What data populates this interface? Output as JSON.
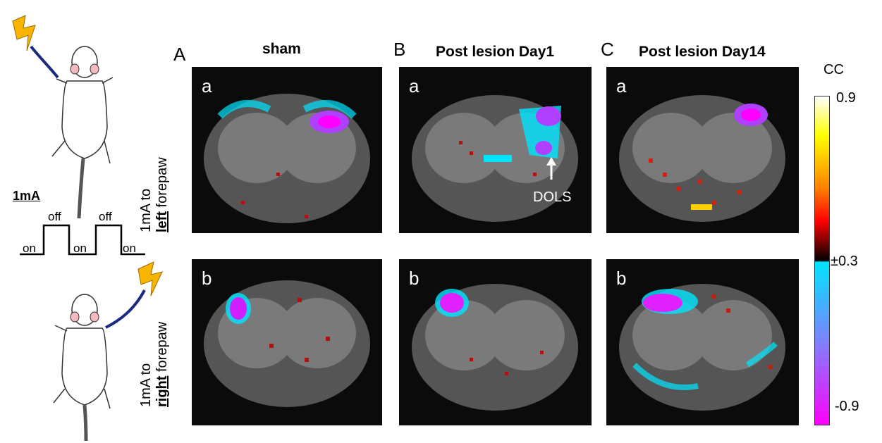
{
  "columns": [
    {
      "letter": "A",
      "title": "sham"
    },
    {
      "letter": "B",
      "title": "Post lesion Day1"
    },
    {
      "letter": "C",
      "title": "Post lesion Day14"
    }
  ],
  "rows": [
    {
      "sub": "a",
      "prefix": "1mA to",
      "bold": "left",
      "suffix": " forepaw"
    },
    {
      "sub": "b",
      "prefix": "1mA to",
      "bold": "right",
      "suffix": " forepaw"
    }
  ],
  "annotation": {
    "text": "DOLS"
  },
  "stimulus": {
    "amplitude": "1mA",
    "on": "on",
    "off": "off"
  },
  "colorbar": {
    "title": "CC",
    "max": "0.9",
    "threshold": "±0.3",
    "min": "-0.9",
    "positive_colors": [
      "#ffffff",
      "#ffff00",
      "#ff8000",
      "#ff0000",
      "#000000"
    ],
    "negative_colors": [
      "#00e5ff",
      "#8080ff",
      "#ff00ff"
    ]
  }
}
